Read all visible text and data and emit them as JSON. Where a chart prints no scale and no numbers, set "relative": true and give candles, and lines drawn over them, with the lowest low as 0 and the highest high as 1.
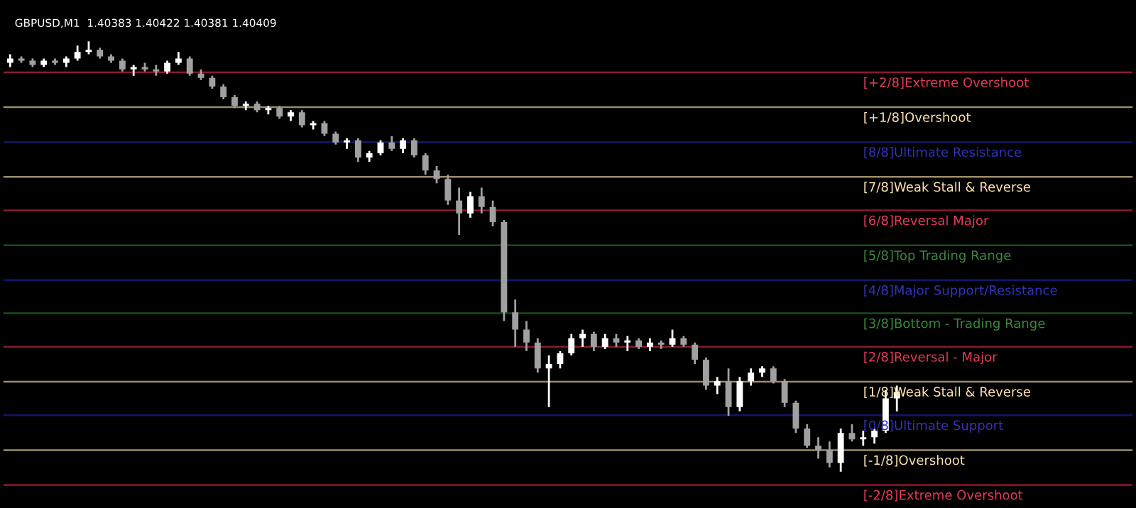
{
  "chart_data": {
    "type": "candlestick",
    "title": "GBPUSD,M1  1.40383 1.40422 1.40381 1.40409",
    "relative": true,
    "grid": false,
    "legend": false,
    "categories": [
      null,
      null,
      null,
      null,
      null,
      null,
      null,
      null,
      null,
      null,
      null,
      null,
      null,
      null,
      null,
      null,
      null,
      null,
      null,
      null,
      null,
      null,
      null,
      null,
      null,
      null,
      null,
      null,
      null,
      null,
      null,
      null,
      null,
      null,
      null,
      null,
      null,
      null,
      null,
      null,
      null,
      null,
      null,
      null,
      null,
      null,
      null,
      null,
      null,
      null,
      null,
      null,
      null,
      null,
      null,
      null,
      null,
      null,
      null,
      null,
      null,
      null,
      null,
      null,
      null,
      null,
      null,
      null,
      null,
      null,
      null,
      null,
      null,
      null,
      null,
      null,
      null,
      null,
      null,
      null
    ],
    "ohlc": [
      [
        0.95,
        0.97,
        0.94,
        0.96
      ],
      [
        0.96,
        0.965,
        0.95,
        0.955
      ],
      [
        0.955,
        0.96,
        0.94,
        0.945
      ],
      [
        0.945,
        0.96,
        0.94,
        0.955
      ],
      [
        0.955,
        0.96,
        0.945,
        0.95
      ],
      [
        0.95,
        0.965,
        0.94,
        0.96
      ],
      [
        0.96,
        0.99,
        0.955,
        0.975
      ],
      [
        0.975,
        1.0,
        0.97,
        0.98
      ],
      [
        0.98,
        0.985,
        0.96,
        0.965
      ],
      [
        0.965,
        0.97,
        0.95,
        0.955
      ],
      [
        0.955,
        0.96,
        0.93,
        0.935
      ],
      [
        0.935,
        0.945,
        0.92,
        0.94
      ],
      [
        0.94,
        0.95,
        0.93,
        0.935
      ],
      [
        0.935,
        0.945,
        0.92,
        0.93
      ],
      [
        0.93,
        0.955,
        0.925,
        0.95
      ],
      [
        0.95,
        0.975,
        0.945,
        0.96
      ],
      [
        0.96,
        0.965,
        0.92,
        0.925
      ],
      [
        0.925,
        0.935,
        0.91,
        0.915
      ],
      [
        0.915,
        0.92,
        0.89,
        0.895
      ],
      [
        0.895,
        0.9,
        0.865,
        0.87
      ],
      [
        0.87,
        0.875,
        0.845,
        0.85
      ],
      [
        0.85,
        0.86,
        0.84,
        0.855
      ],
      [
        0.855,
        0.86,
        0.835,
        0.84
      ],
      [
        0.84,
        0.85,
        0.83,
        0.845
      ],
      [
        0.845,
        0.85,
        0.82,
        0.825
      ],
      [
        0.825,
        0.84,
        0.815,
        0.835
      ],
      [
        0.835,
        0.84,
        0.8,
        0.805
      ],
      [
        0.805,
        0.815,
        0.795,
        0.81
      ],
      [
        0.81,
        0.815,
        0.78,
        0.785
      ],
      [
        0.785,
        0.79,
        0.76,
        0.765
      ],
      [
        0.765,
        0.775,
        0.75,
        0.77
      ],
      [
        0.77,
        0.775,
        0.72,
        0.73
      ],
      [
        0.73,
        0.745,
        0.72,
        0.74
      ],
      [
        0.74,
        0.77,
        0.735,
        0.765
      ],
      [
        0.765,
        0.78,
        0.745,
        0.75
      ],
      [
        0.75,
        0.775,
        0.74,
        0.77
      ],
      [
        0.77,
        0.775,
        0.73,
        0.735
      ],
      [
        0.735,
        0.74,
        0.69,
        0.7
      ],
      [
        0.7,
        0.71,
        0.67,
        0.68
      ],
      [
        0.68,
        0.69,
        0.62,
        0.63
      ],
      [
        0.63,
        0.66,
        0.55,
        0.6
      ],
      [
        0.6,
        0.65,
        0.59,
        0.64
      ],
      [
        0.64,
        0.66,
        0.6,
        0.615
      ],
      [
        0.615,
        0.63,
        0.57,
        0.58
      ],
      [
        0.58,
        0.585,
        0.35,
        0.37
      ],
      [
        0.37,
        0.4,
        0.29,
        0.33
      ],
      [
        0.33,
        0.35,
        0.28,
        0.3
      ],
      [
        0.3,
        0.31,
        0.23,
        0.24
      ],
      [
        0.24,
        0.27,
        0.15,
        0.25
      ],
      [
        0.25,
        0.28,
        0.24,
        0.275
      ],
      [
        0.275,
        0.32,
        0.27,
        0.31
      ],
      [
        0.31,
        0.33,
        0.29,
        0.32
      ],
      [
        0.32,
        0.325,
        0.28,
        0.29
      ],
      [
        0.29,
        0.32,
        0.285,
        0.31
      ],
      [
        0.31,
        0.32,
        0.29,
        0.3
      ],
      [
        0.3,
        0.315,
        0.28,
        0.305
      ],
      [
        0.305,
        0.31,
        0.285,
        0.29
      ],
      [
        0.29,
        0.31,
        0.28,
        0.3
      ],
      [
        0.3,
        0.305,
        0.285,
        0.295
      ],
      [
        0.295,
        0.33,
        0.29,
        0.31
      ],
      [
        0.31,
        0.315,
        0.29,
        0.295
      ],
      [
        0.295,
        0.3,
        0.25,
        0.26
      ],
      [
        0.26,
        0.265,
        0.19,
        0.2
      ],
      [
        0.2,
        0.22,
        0.18,
        0.21
      ],
      [
        0.21,
        0.24,
        0.13,
        0.15
      ],
      [
        0.15,
        0.22,
        0.14,
        0.21
      ],
      [
        0.21,
        0.24,
        0.2,
        0.23
      ],
      [
        0.23,
        0.245,
        0.22,
        0.24
      ],
      [
        0.24,
        0.245,
        0.205,
        0.21
      ],
      [
        0.21,
        0.215,
        0.15,
        0.16
      ],
      [
        0.16,
        0.165,
        0.09,
        0.1
      ],
      [
        0.1,
        0.11,
        0.055,
        0.06
      ],
      [
        0.06,
        0.08,
        0.03,
        0.05
      ],
      [
        0.05,
        0.07,
        0.01,
        0.02
      ],
      [
        0.02,
        0.1,
        0.0,
        0.09
      ],
      [
        0.09,
        0.11,
        0.07,
        0.075
      ],
      [
        0.075,
        0.095,
        0.06,
        0.08
      ],
      [
        0.08,
        0.1,
        0.065,
        0.095
      ],
      [
        0.095,
        0.19,
        0.09,
        0.17
      ],
      [
        0.17,
        0.2,
        0.14,
        0.185
      ]
    ],
    "ref_lines": [
      {
        "axis": "y",
        "value": 0.928,
        "label": "[+2/8]Extreme Overshoot",
        "color": "#8b1a2b"
      },
      {
        "axis": "y",
        "value": 0.847,
        "label": "[+1/8]Overshoot",
        "color": "#9c8a6a"
      },
      {
        "axis": "y",
        "value": 0.766,
        "label": "[8/8]Ultimate Resistance",
        "color": "#14146e"
      },
      {
        "axis": "y",
        "value": 0.685,
        "label": "[7/8]Weak Stall & Reverse",
        "color": "#9c8a6a"
      },
      {
        "axis": "y",
        "value": 0.607,
        "label": "[6/8]Reversal Major",
        "color": "#8b1a2b"
      },
      {
        "axis": "y",
        "value": 0.526,
        "label": "[5/8]Top Trading Range",
        "color": "#1a4d1a"
      },
      {
        "axis": "y",
        "value": 0.445,
        "label": "[4/8]Major Support/Resistance",
        "color": "#14146e"
      },
      {
        "axis": "y",
        "value": 0.368,
        "label": "[3/8]Bottom - Trading Range",
        "color": "#1a4d1a"
      },
      {
        "axis": "y",
        "value": 0.29,
        "label": "[2/8]Reversal - Major",
        "color": "#8b1a2b"
      },
      {
        "axis": "y",
        "value": 0.209,
        "label": "[1/8]Weak Stall & Reverse",
        "color": "#9c8a6a"
      },
      {
        "axis": "y",
        "value": 0.131,
        "label": "[0/8]Ultimate Support",
        "color": "#14146e"
      },
      {
        "axis": "y",
        "value": 0.05,
        "label": "[-1/8]Overshoot",
        "color": "#9c8a6a"
      },
      {
        "axis": "y",
        "value": -0.031,
        "label": "[-2/8]Extreme Overshoot",
        "color": "#8b1a2b"
      }
    ]
  }
}
